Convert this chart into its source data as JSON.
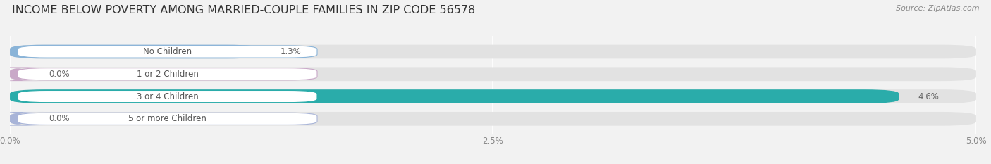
{
  "title": "INCOME BELOW POVERTY AMONG MARRIED-COUPLE FAMILIES IN ZIP CODE 56578",
  "source": "Source: ZipAtlas.com",
  "categories": [
    "No Children",
    "1 or 2 Children",
    "3 or 4 Children",
    "5 or more Children"
  ],
  "values": [
    1.3,
    0.0,
    4.6,
    0.0
  ],
  "bar_colors": [
    "#8ab4d8",
    "#c9a8c8",
    "#2aacaa",
    "#a8b4d8"
  ],
  "xlim": [
    0,
    5.0
  ],
  "xticks": [
    0.0,
    2.5,
    5.0
  ],
  "xtick_labels": [
    "0.0%",
    "2.5%",
    "5.0%"
  ],
  "bg_color": "#f2f2f2",
  "bar_bg_color": "#e2e2e2",
  "title_fontsize": 11.5,
  "source_fontsize": 8,
  "label_fontsize": 8.5,
  "value_fontsize": 8.5
}
